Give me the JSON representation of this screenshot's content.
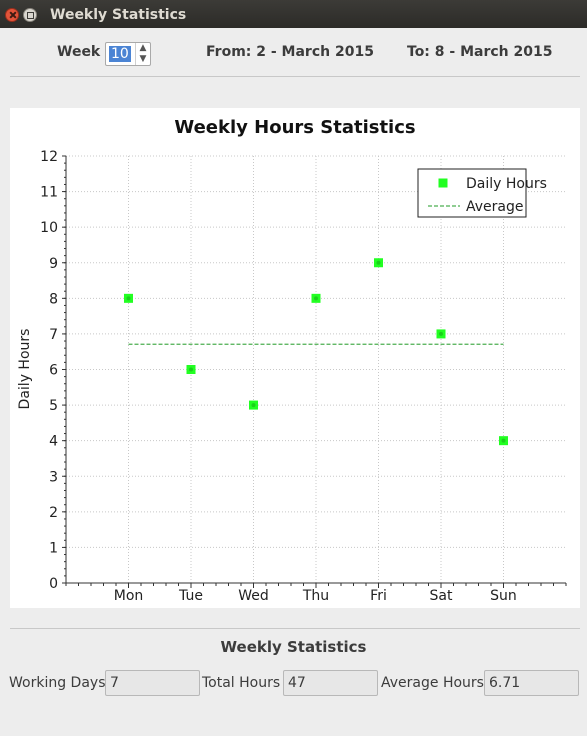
{
  "window": {
    "title": "Weekly Statistics"
  },
  "week_selector": {
    "label": "Week",
    "value": "10",
    "from_label": "From: 2 - March 2015",
    "to_label": "To: 8 - March 2015"
  },
  "stats": {
    "title": "Weekly Statistics",
    "working_days_label": "Working Days",
    "working_days_value": "7",
    "total_hours_label": "Total Hours",
    "total_hours_value": "47",
    "average_hours_label": "Average Hours",
    "average_hours_value": "6.71"
  },
  "colors": {
    "points": "#22ff22",
    "average_line": "#4caf50"
  },
  "chart_data": {
    "type": "scatter",
    "title": "Weekly Hours Statistics",
    "xlabel": "",
    "ylabel": "Daily Hours",
    "categories": [
      "Mon",
      "Tue",
      "Wed",
      "Thu",
      "Fri",
      "Sat",
      "Sun"
    ],
    "series": [
      {
        "name": "Daily Hours",
        "values": [
          8,
          6,
          5,
          8,
          9,
          7,
          4
        ]
      },
      {
        "name": "Average",
        "style": "dashed-line",
        "values": [
          6.71,
          6.71,
          6.71,
          6.71,
          6.71,
          6.71,
          6.71
        ]
      }
    ],
    "ylim": [
      0,
      12
    ],
    "yticks": [
      0,
      1,
      2,
      3,
      4,
      5,
      6,
      7,
      8,
      9,
      10,
      11,
      12
    ],
    "grid": true,
    "legend_position": "top-right"
  }
}
